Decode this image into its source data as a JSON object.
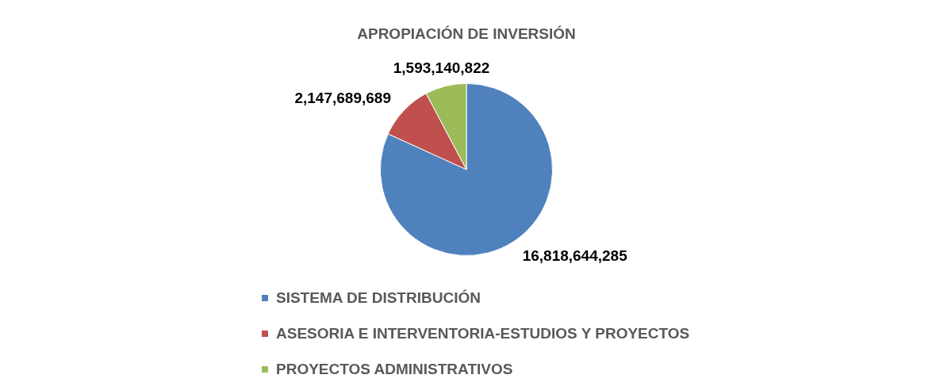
{
  "chart_data": {
    "type": "pie",
    "title": "APROPIACIÓN DE INVERSIÓN",
    "categories": [
      "SISTEMA DE DISTRIBUCIÓN",
      "ASESORIA E INTERVENTORIA-ESTUDIOS Y PROYECTOS",
      "PROYECTOS ADMINISTRATIVOS"
    ],
    "values": [
      16818644285,
      2147689689,
      1593140822
    ],
    "colors": [
      "#4f81bd",
      "#c0504d",
      "#9bbb59"
    ],
    "value_labels": [
      "16,818,644,285",
      "2,147,689,689",
      "1,593,140,822"
    ],
    "legend": "bottom"
  }
}
